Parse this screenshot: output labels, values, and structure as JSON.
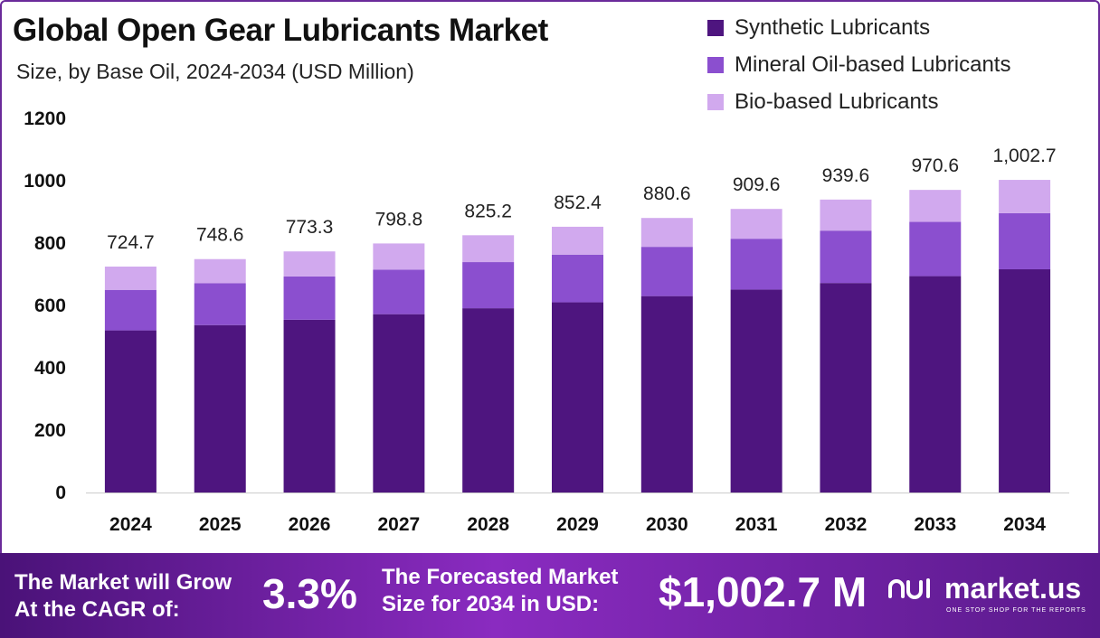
{
  "header": {
    "title": "Global Open Gear Lubricants Market",
    "subtitle": "Size, by Base Oil, 2024-2034 (USD Million)"
  },
  "chart_data": {
    "type": "bar",
    "stacked": true,
    "categories": [
      "2024",
      "2025",
      "2026",
      "2027",
      "2028",
      "2029",
      "2030",
      "2031",
      "2032",
      "2033",
      "2034"
    ],
    "series": [
      {
        "name": "Synthetic Lubricants",
        "color": "#4e157f",
        "values": [
          520,
          537,
          554,
          572,
          591,
          610,
          630,
          651,
          672,
          694,
          716
        ]
      },
      {
        "name": "Mineral Oil-based Lubricants",
        "color": "#8b4fcf",
        "values": [
          130,
          134,
          139,
          143,
          148,
          153,
          158,
          163,
          168,
          174,
          180
        ]
      },
      {
        "name": "Bio-based Lubricants",
        "color": "#d1a9ee",
        "values": [
          74.7,
          77.6,
          80.3,
          83.8,
          86.2,
          89.4,
          92.6,
          95.6,
          99.6,
          102.6,
          106.7
        ]
      }
    ],
    "totals_labels": [
      "724.7",
      "748.6",
      "773.3",
      "798.8",
      "825.2",
      "852.4",
      "880.6",
      "909.6",
      "939.6",
      "970.6",
      "1,002.7"
    ],
    "totals": [
      724.7,
      748.6,
      773.3,
      798.8,
      825.2,
      852.4,
      880.6,
      909.6,
      939.6,
      970.6,
      1002.7
    ],
    "ylim": [
      0,
      1200
    ],
    "yticks": [
      0,
      200,
      400,
      600,
      800,
      1000,
      1200
    ],
    "legend_position": "top-right"
  },
  "footer": {
    "cagr_label_1": "The Market will Grow",
    "cagr_label_2": "At the CAGR of:",
    "cagr_value": "3.3%",
    "size_label_1": "The Forecasted Market",
    "size_label_2": "Size for 2034 in USD:",
    "size_value": "$1,002.7 M",
    "brand_name": "market.us",
    "brand_tagline": "ONE STOP SHOP FOR THE REPORTS"
  }
}
